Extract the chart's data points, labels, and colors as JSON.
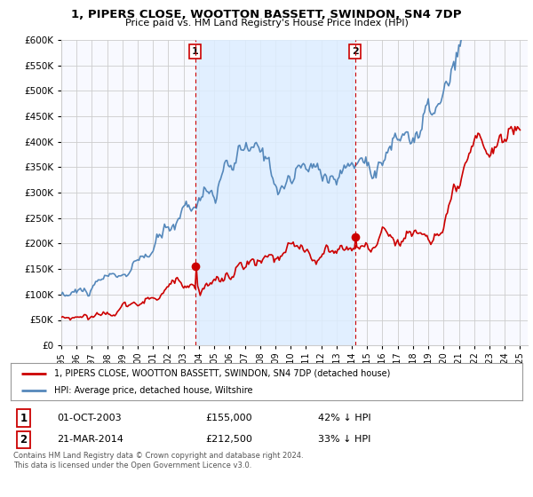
{
  "title": "1, PIPERS CLOSE, WOOTTON BASSETT, SWINDON, SN4 7DP",
  "subtitle": "Price paid vs. HM Land Registry's House Price Index (HPI)",
  "legend_line1": "1, PIPERS CLOSE, WOOTTON BASSETT, SWINDON, SN4 7DP (detached house)",
  "legend_line2": "HPI: Average price, detached house, Wiltshire",
  "footer": "Contains HM Land Registry data © Crown copyright and database right 2024.\nThis data is licensed under the Open Government Licence v3.0.",
  "sale1_date": 2003.75,
  "sale1_label": "1",
  "sale1_price": 155000,
  "sale1_text": "01-OCT-2003",
  "sale1_pct": "42% ↓ HPI",
  "sale2_date": 2014.22,
  "sale2_label": "2",
  "sale2_price": 212500,
  "sale2_text": "21-MAR-2014",
  "sale2_pct": "33% ↓ HPI",
  "red_color": "#cc0000",
  "blue_color": "#5588bb",
  "shade_color": "#ddeeff",
  "background_color": "#ffffff",
  "plot_bg_color": "#f8f9ff",
  "grid_color": "#cccccc",
  "ylim": [
    0,
    600000
  ],
  "xlim_start": 1995.0,
  "xlim_end": 2025.5
}
